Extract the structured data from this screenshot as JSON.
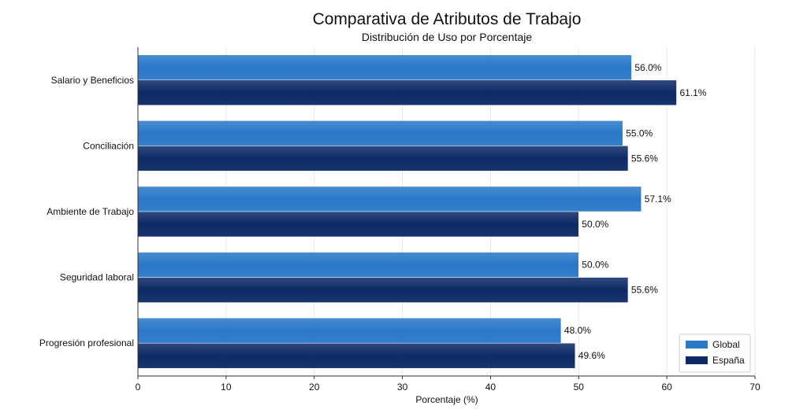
{
  "chart_data": {
    "type": "bar",
    "orientation": "horizontal",
    "title": "Comparativa de Atributos de Trabajo",
    "subtitle": "Distribución de Uso por Porcentaje",
    "xlabel": "Porcentaje (%)",
    "ylabel": "",
    "xlim": [
      0,
      70
    ],
    "xticks": [
      0,
      10,
      20,
      30,
      40,
      50,
      60,
      70
    ],
    "grid": true,
    "legend_position": "bottom-right",
    "categories": [
      "Salario y Beneficios",
      "Conciliación",
      "Ambiente de Trabajo",
      "Seguridad laboral",
      "Progresión profesional"
    ],
    "series": [
      {
        "name": "Global",
        "color": "#2a78c8",
        "values": [
          56.0,
          55.0,
          57.1,
          50.0,
          48.0
        ],
        "labels": [
          "56.0%",
          "55.0%",
          "57.1%",
          "50.0%",
          "48.0%"
        ]
      },
      {
        "name": "España",
        "color": "#0d2a66",
        "values": [
          61.1,
          55.6,
          50.0,
          55.6,
          49.6
        ],
        "labels": [
          "61.1%",
          "55.6%",
          "50.0%",
          "55.6%",
          "49.6%"
        ]
      }
    ]
  }
}
